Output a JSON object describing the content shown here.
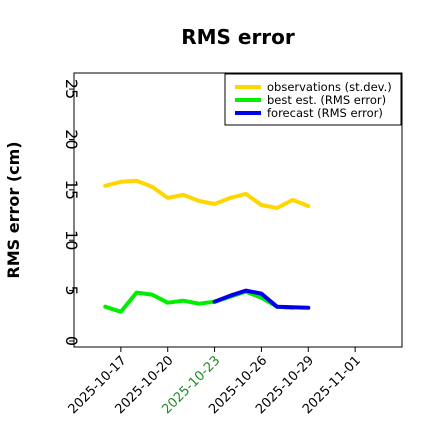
{
  "chart_data": {
    "type": "line",
    "title": "RMS error",
    "ylabel": "RMS error (cm)",
    "xlabel": "",
    "ylim": [
      0,
      26
    ],
    "yticks": [
      0,
      5,
      10,
      15,
      20,
      25
    ],
    "xlim": [
      "2025-10-14",
      "2025-11-04"
    ],
    "xticks": [
      "2025-10-17",
      "2025-10-20",
      "2025-10-23",
      "2025-10-26",
      "2025-10-29",
      "2025-11-01"
    ],
    "highlight_tick": "2025-10-23",
    "highlight_color": "#228B22",
    "grid": false,
    "legend_position": "top-right",
    "series": [
      {
        "name": "observations (st.dev.)",
        "color": "#FFD700",
        "x": [
          "2025-10-16",
          "2025-10-17",
          "2025-10-18",
          "2025-10-19",
          "2025-10-20",
          "2025-10-21",
          "2025-10-22",
          "2025-10-23",
          "2025-10-24",
          "2025-10-25",
          "2025-10-26",
          "2025-10-27",
          "2025-10-28",
          "2025-10-29"
        ],
        "values": [
          15.4,
          15.8,
          15.9,
          15.3,
          14.2,
          14.5,
          13.9,
          13.6,
          14.2,
          14.6,
          13.5,
          13.2,
          14.0,
          13.4
        ]
      },
      {
        "name": "best est. (RMS error)",
        "color": "#00EE00",
        "x": [
          "2025-10-16",
          "2025-10-17",
          "2025-10-18",
          "2025-10-19",
          "2025-10-20",
          "2025-10-21",
          "2025-10-22",
          "2025-10-23",
          "2025-10-24",
          "2025-10-25",
          "2025-10-26",
          "2025-10-27",
          "2025-10-28"
        ],
        "values": [
          3.4,
          2.9,
          4.8,
          4.6,
          3.8,
          4.0,
          3.7,
          3.9,
          4.4,
          4.9,
          4.3,
          3.4,
          3.3
        ]
      },
      {
        "name": "forecast (RMS error)",
        "color": "#0000EE",
        "x": [
          "2025-10-23",
          "2025-10-24",
          "2025-10-25",
          "2025-10-26",
          "2025-10-27",
          "2025-10-28",
          "2025-10-29"
        ],
        "values": [
          3.9,
          4.5,
          5.0,
          4.7,
          3.4,
          3.35,
          3.3
        ]
      }
    ]
  }
}
